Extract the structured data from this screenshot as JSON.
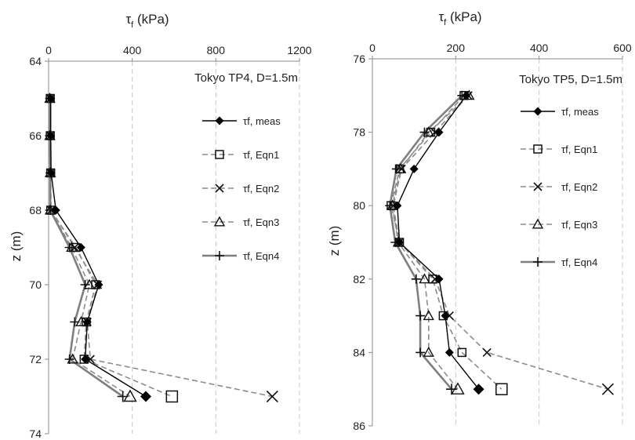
{
  "chart_data": [
    {
      "type": "line",
      "title": "Tokyo TP4, D=1.5m",
      "xlabel": "τf (kPa)",
      "ylabel": "z (m)",
      "x_axis_position": "top",
      "y_inverted": true,
      "xlim": [
        0,
        1200
      ],
      "ylim": [
        64,
        74
      ],
      "x_ticks": [
        "0",
        "400",
        "800",
        "1200"
      ],
      "y_ticks": [
        "64",
        "66",
        "68",
        "70",
        "72",
        "74"
      ],
      "grid": "vertical dashed",
      "legend_position": "right",
      "z": [
        65,
        66,
        67,
        68,
        69,
        70,
        71,
        72,
        73
      ],
      "series": [
        {
          "name": "τf, meas",
          "marker": "filled-diamond",
          "line": "solid-black",
          "values": [
            10,
            10,
            12,
            35,
            155,
            240,
            185,
            175,
            465
          ]
        },
        {
          "name": "τf, Eqn1",
          "marker": "open-square",
          "line": "dashed-gray",
          "values": [
            8,
            8,
            10,
            10,
            130,
            225,
            180,
            170,
            590
          ]
        },
        {
          "name": "τf, Eqn2",
          "marker": "x",
          "line": "dashed-gray",
          "values": [
            8,
            8,
            10,
            12,
            125,
            235,
            185,
            200,
            1070
          ]
        },
        {
          "name": "τf, Eqn3",
          "marker": "open-triangle",
          "line": "dashed-gray",
          "values": [
            6,
            6,
            8,
            8,
            110,
            195,
            155,
            115,
            390
          ]
        },
        {
          "name": "τf, Eqn4",
          "marker": "plus",
          "line": "solid-gray-thick",
          "values": [
            6,
            6,
            8,
            8,
            100,
            175,
            125,
            100,
            355
          ]
        }
      ]
    },
    {
      "type": "line",
      "title": "Tokyo TP5, D=1.5m",
      "xlabel": "τf (kPa)",
      "ylabel": "z (m)",
      "x_axis_position": "top",
      "y_inverted": true,
      "xlim": [
        0,
        600
      ],
      "ylim": [
        76,
        86
      ],
      "x_ticks": [
        "0",
        "200",
        "400",
        "600"
      ],
      "y_ticks": [
        "76",
        "78",
        "80",
        "82",
        "84",
        "86"
      ],
      "grid": "vertical dashed",
      "legend_position": "right",
      "z": [
        77,
        78,
        79,
        80,
        81,
        82,
        83,
        84,
        85
      ],
      "series": [
        {
          "name": "τf, meas",
          "marker": "filled-diamond",
          "line": "solid-black",
          "values": [
            225,
            160,
            100,
            60,
            65,
            160,
            175,
            185,
            255
          ]
        },
        {
          "name": "τf, Eqn1",
          "marker": "open-square",
          "line": "dashed-gray",
          "values": [
            220,
            140,
            65,
            45,
            65,
            145,
            170,
            215,
            310
          ]
        },
        {
          "name": "τf, Eqn2",
          "marker": "x",
          "line": "dashed-gray",
          "values": [
            230,
            150,
            70,
            50,
            65,
            150,
            185,
            275,
            565
          ]
        },
        {
          "name": "τf, Eqn3",
          "marker": "open-triangle",
          "line": "dashed-gray",
          "values": [
            232,
            135,
            68,
            48,
            62,
            125,
            135,
            135,
            205
          ]
        },
        {
          "name": "τf, Eqn4",
          "marker": "plus",
          "line": "solid-gray-thick",
          "values": [
            215,
            125,
            58,
            42,
            55,
            105,
            115,
            115,
            190
          ]
        }
      ]
    }
  ]
}
